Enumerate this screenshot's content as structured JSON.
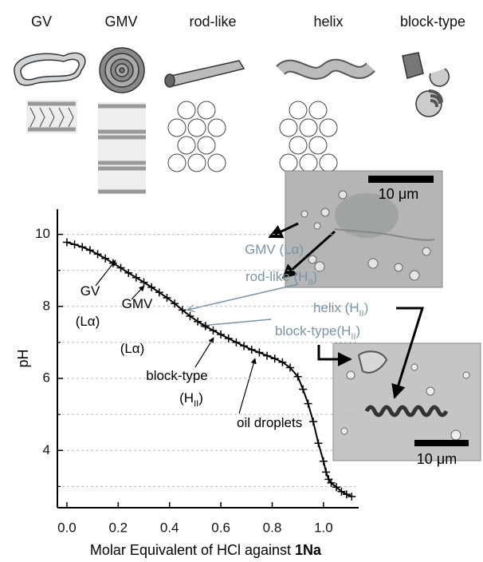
{
  "structures": [
    "GV",
    "GMV",
    "rod-like",
    "helix",
    "block-type"
  ],
  "micrographs": [
    {
      "scale": "10 μm"
    },
    {
      "scale": "10 μm"
    }
  ],
  "chart_data": {
    "type": "line",
    "xlabel": [
      "Molar Equivalent of HCl against",
      "1Na"
    ],
    "ylabel": "pH",
    "xlim": [
      -0.037,
      1.137
    ],
    "ylim": [
      2.41,
      10.7
    ],
    "xticks": [
      {
        "value": 0,
        "label": "0.0"
      },
      {
        "value": 0.2,
        "label": "0.2"
      },
      {
        "value": 0.4,
        "label": "0.4"
      },
      {
        "value": 0.6,
        "label": "0.6"
      },
      {
        "value": 0.8,
        "label": "0.8"
      },
      {
        "value": 1,
        "label": "1.0"
      }
    ],
    "yticks": [
      4,
      6,
      8,
      10
    ],
    "yminorticks": [
      3,
      5,
      7,
      9
    ],
    "grid": true,
    "color": "#000000",
    "x": [
      0,
      0.03,
      0.06,
      0.09,
      0.12,
      0.15,
      0.18,
      0.21,
      0.24,
      0.27,
      0.3,
      0.33,
      0.36,
      0.39,
      0.42,
      0.45,
      0.48,
      0.51,
      0.54,
      0.57,
      0.6,
      0.63,
      0.66,
      0.69,
      0.72,
      0.75,
      0.78,
      0.81,
      0.84,
      0.87,
      0.9,
      0.92,
      0.94,
      0.96,
      0.98,
      1.0,
      1.01,
      1.02,
      1.03,
      1.05,
      1.07,
      1.09,
      1.11
    ],
    "values": [
      9.78,
      9.72,
      9.65,
      9.56,
      9.45,
      9.33,
      9.2,
      9.07,
      8.93,
      8.8,
      8.67,
      8.53,
      8.39,
      8.24,
      8.08,
      7.9,
      7.73,
      7.58,
      7.45,
      7.33,
      7.22,
      7.11,
      7.0,
      6.9,
      6.8,
      6.72,
      6.63,
      6.55,
      6.45,
      6.3,
      6.05,
      5.7,
      5.3,
      4.8,
      4.2,
      3.7,
      3.4,
      3.2,
      3.1,
      2.98,
      2.86,
      2.78,
      2.72
    ],
    "annotations": [
      {
        "color": "#000000",
        "lines": [
          {
            "main": "GV"
          },
          {
            "main": "(Lα)"
          }
        ]
      },
      {
        "color": "#000000",
        "lines": [
          {
            "main": "GMV"
          },
          {
            "main": "(Lα)"
          }
        ]
      },
      {
        "color": "#000000",
        "lines": [
          {
            "main": "block-type"
          },
          {
            "main": "(H",
            "sub": "II",
            "tail": ")"
          }
        ]
      },
      {
        "color": "#000000",
        "lines": [
          {
            "main": "oil droplets"
          }
        ]
      },
      {
        "color": "#7b93a4",
        "lines": [
          {
            "main": "GMV (Lα)"
          },
          {
            "main": "rod-like (H",
            "sub": "II",
            "tail": ")"
          }
        ]
      },
      {
        "color": "#7b93a4",
        "lines": [
          {
            "main": "helix (H",
            "sub": "II",
            "tail": ")"
          },
          {
            "main": "block-type(H",
            "sub": "II",
            "tail": ")"
          }
        ]
      }
    ]
  }
}
